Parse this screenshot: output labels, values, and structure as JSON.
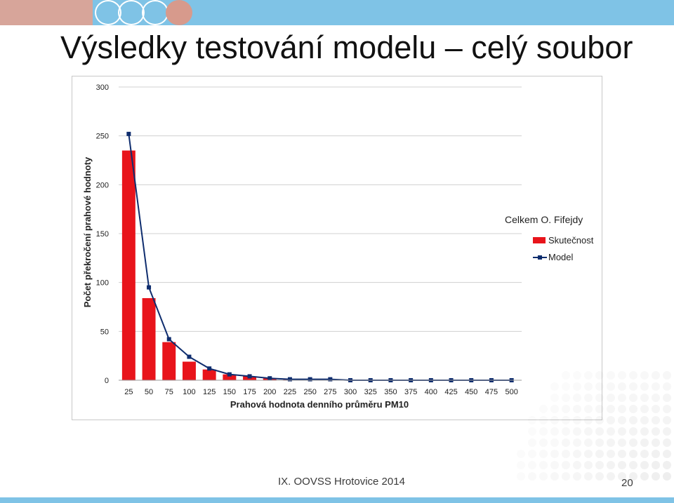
{
  "slide": {
    "title": "Výsledky testování modelu – celý soubor",
    "footer": "IX. OOVSS Hrotovice 2014",
    "page_number": "20"
  },
  "colors": {
    "band": "#7fc3e6",
    "band_left": "#d7a59a",
    "logo_circle": "#d79a8c",
    "bar": "#e8141b",
    "line": "#0f2d6e"
  },
  "chart_data": {
    "type": "bar",
    "title": "Celkem O. Fifejdy",
    "xlabel": "Prahová hodnota denního průměru PM10",
    "ylabel": "Počet překročení prahové hodnoty",
    "categories": [
      "25",
      "50",
      "75",
      "100",
      "125",
      "150",
      "175",
      "200",
      "225",
      "250",
      "275",
      "300",
      "325",
      "350",
      "375",
      "400",
      "425",
      "450",
      "475",
      "500"
    ],
    "ylim": [
      0,
      300
    ],
    "yticks": [
      0,
      50,
      100,
      150,
      200,
      250,
      300
    ],
    "grid": true,
    "legend_position": "right",
    "series": [
      {
        "name": "Skutečnost",
        "type": "bar",
        "values": [
          235,
          84,
          39,
          19,
          11,
          6,
          4,
          2,
          1,
          1,
          1,
          0,
          0,
          0,
          0,
          0,
          0,
          0,
          0,
          0
        ]
      },
      {
        "name": "Model",
        "type": "line",
        "values": [
          252,
          95,
          42,
          24,
          12,
          6,
          4,
          2,
          1,
          1,
          1,
          0,
          0,
          0,
          0,
          0,
          0,
          0,
          0,
          0
        ]
      }
    ]
  }
}
